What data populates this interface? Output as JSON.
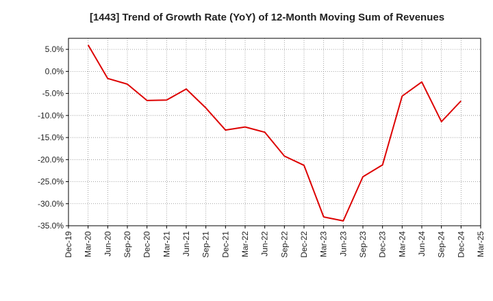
{
  "chart_data": {
    "type": "line",
    "title": "[1443]  Trend of Growth Rate (YoY) of 12-Month Moving Sum of Revenues",
    "xlabel": "",
    "ylabel": "",
    "x_ticks": [
      "Dec-19",
      "Mar-20",
      "Jun-20",
      "Sep-20",
      "Dec-20",
      "Mar-21",
      "Jun-21",
      "Sep-21",
      "Dec-21",
      "Mar-22",
      "Jun-22",
      "Sep-22",
      "Dec-22",
      "Mar-23",
      "Jun-23",
      "Sep-23",
      "Dec-23",
      "Mar-24",
      "Jun-24",
      "Sep-24",
      "Dec-24",
      "Mar-25"
    ],
    "y_ticks": [
      "5.0%",
      "0.0%",
      "-5.0%",
      "-10.0%",
      "-15.0%",
      "-20.0%",
      "-25.0%",
      "-30.0%",
      "-35.0%"
    ],
    "y_tick_values": [
      5,
      0,
      -5,
      -10,
      -15,
      -20,
      -25,
      -30,
      -35
    ],
    "ylim": [
      -35,
      7.5
    ],
    "grid": true,
    "series": [
      {
        "color": "#dd0000",
        "x": [
          "Mar-20",
          "Jun-20",
          "Sep-20",
          "Dec-20",
          "Mar-21",
          "Jun-21",
          "Sep-21",
          "Dec-21",
          "Mar-22",
          "Jun-22",
          "Sep-22",
          "Dec-22",
          "Mar-23",
          "Jun-23",
          "Sep-23",
          "Dec-23",
          "Mar-24",
          "Jun-24",
          "Sep-24",
          "Dec-24"
        ],
        "values": [
          6.0,
          -1.6,
          -2.9,
          -6.6,
          -6.5,
          -4.0,
          -8.3,
          -13.3,
          -12.6,
          -13.8,
          -19.2,
          -21.3,
          -33.0,
          -33.9,
          -23.9,
          -21.2,
          -5.6,
          -2.4,
          -11.4,
          -6.7
        ]
      }
    ]
  }
}
